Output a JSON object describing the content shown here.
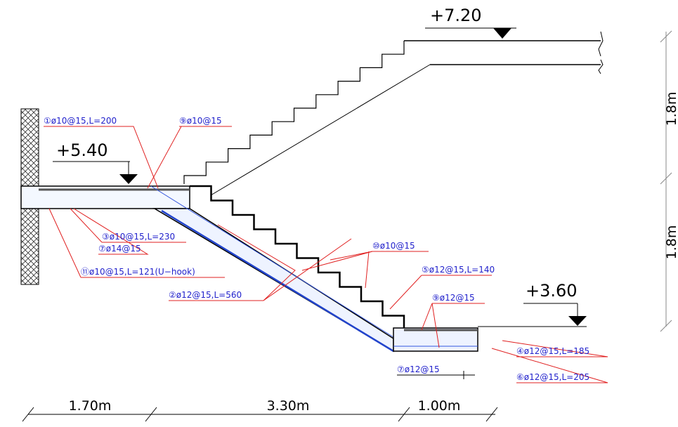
{
  "elevations": [
    "+7.20",
    "+5.40",
    "+3.60"
  ],
  "heights": [
    "1.8m",
    "1.8m"
  ],
  "widths": [
    "1.70m",
    "3.30m",
    "1.00m"
  ],
  "rebars": [
    "①ø10@15,L=200",
    "⑨ø10@15",
    "③ø10@15,L=230",
    "⑦ø14@15",
    "⑪ø10@15,L=121(U−hook)",
    "②ø12@15,L=560",
    "⑩ø10@15",
    "⑤ø12@15,L=140",
    "⑨ø12@15",
    "④ø12@15,L=185",
    "⑥ø12@15,L=205",
    "⑦ø12@15"
  ]
}
